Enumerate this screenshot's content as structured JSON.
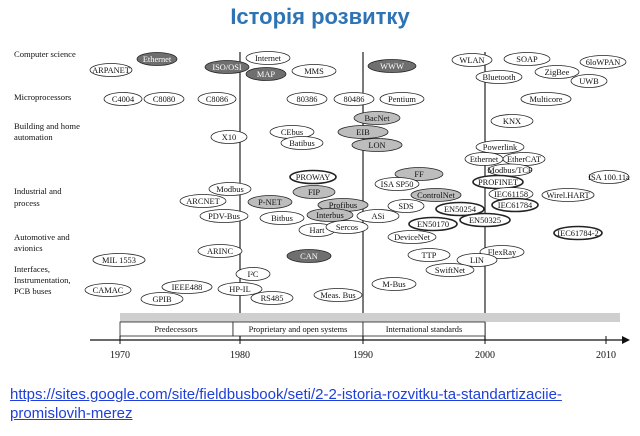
{
  "title": "Історія розвитку",
  "link": {
    "line1": "https://sites.google.com/site/fieldbusbook/seti/2-2-istoria-rozvitku-ta-standartizaciie-",
    "line2": "promislovih-merez"
  },
  "categories": [
    "Computer science",
    "Microprocessors",
    "Building and home",
    "automation",
    "Industrial and",
    "process",
    "Automotive and",
    "avionics",
    "Interfaces,",
    "Instrumentation,",
    "PCB buses"
  ],
  "bands": [
    "Predecessors",
    "Proprietary and open systems",
    "International standards"
  ],
  "years": [
    "1970",
    "1980",
    "1990",
    "2000",
    "2010"
  ],
  "nodes": [
    "ARPANET",
    "Ethernet",
    "Internet",
    "ISO/OSI",
    "MAP",
    "MMS",
    "WWW",
    "WLAN",
    "SOAP",
    "6loWPAN",
    "Bluetooth",
    "ZigBee",
    "UWB",
    "C4004",
    "C8080",
    "C8086",
    "80386",
    "80486",
    "Pentium",
    "Multicore",
    "BacNet",
    "KNX",
    "X10",
    "CEbus",
    "EIB",
    "Batibus",
    "LON",
    "Powerlink",
    "Ethernet",
    "EtherCAT",
    "Modbus/TCP",
    "ISA 100.11a",
    "FF",
    "PROWAY",
    "PROFINET",
    "ISA SP50",
    "ControlNet",
    "IEC61158",
    "Wirel.HART",
    "Modbus",
    "FIP",
    "ARCNET",
    "P-NET",
    "Profibus",
    "SDS",
    "EN50254",
    "IEC61784",
    "PDV-Bus",
    "Bitbus",
    "Interbus",
    "ASi",
    "EN50170",
    "EN50325",
    "Hart",
    "Sercos",
    "DeviceNet",
    "IEC61784-2",
    "ARINC",
    "CAN",
    "TTP",
    "FlexRay",
    "MIL 1553",
    "LIN",
    "SwiftNet",
    "I²C",
    "M-Bus",
    "IEEE488",
    "CAMAC",
    "HP-IL",
    "GPIB",
    "RS485",
    "Meas. Bus"
  ],
  "colors": {
    "title": "#2e74b5",
    "link": "#1f3fd8",
    "dark_fill": "#6f6f6f",
    "mid_fill": "#bdbdbd",
    "axis": "#111111"
  }
}
